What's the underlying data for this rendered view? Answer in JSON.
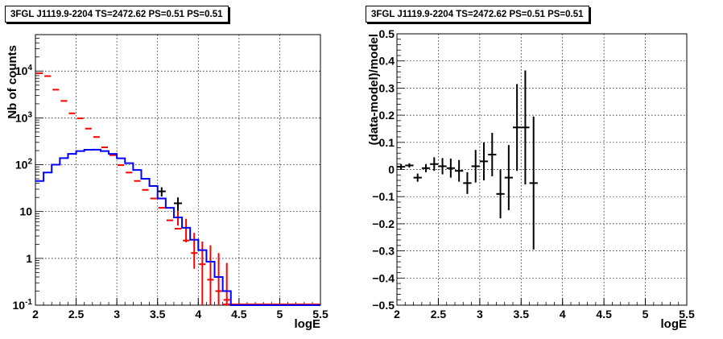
{
  "chart_data": [
    {
      "type": "step-histogram-with-errors",
      "title": "3FGL J1119.9-2204 TS=2472.62 PS=0.51 PS=0.51",
      "xlabel": "logE",
      "ylabel": "Nb of counts",
      "xlim": [
        2,
        5.5
      ],
      "ylim": [
        0.1,
        60000
      ],
      "yscale": "log",
      "grid": true,
      "xticks": [
        "2",
        "2.5",
        "3",
        "3.5",
        "4",
        "4.5",
        "5",
        "5.5"
      ],
      "yticks": [
        {
          "value": 0.1,
          "base": "10",
          "exp": "-1"
        },
        {
          "value": 1,
          "base": "1",
          "exp": ""
        },
        {
          "value": 10,
          "base": "10",
          "exp": ""
        },
        {
          "value": 100,
          "base": "10",
          "exp": "2"
        },
        {
          "value": 1000,
          "base": "10",
          "exp": "3"
        },
        {
          "value": 10000,
          "base": "10",
          "exp": "4"
        }
      ],
      "bin_edges": [
        2.0,
        2.1,
        2.2,
        2.3,
        2.4,
        2.5,
        2.6,
        2.7,
        2.8,
        2.9,
        3.0,
        3.1,
        3.2,
        3.3,
        3.4,
        3.5,
        3.6,
        3.7,
        3.8,
        3.9,
        4.0,
        4.1,
        4.2,
        4.3,
        4.4,
        4.5,
        4.6,
        4.7,
        4.8,
        4.9,
        5.0,
        5.1,
        5.2,
        5.3,
        5.4,
        5.5
      ],
      "series": [
        {
          "role": "total model",
          "color": "#ff0000",
          "values": [
            9000,
            7800,
            4000,
            2300,
            1250,
            980,
            590,
            390,
            235,
            160,
            98,
            68,
            45,
            29,
            19,
            12,
            6.5,
            4.3,
            2.4,
            1.3,
            0.75,
            0.35,
            0.2,
            0.13,
            0.1,
            0.1,
            0.1,
            0.1,
            0.1,
            0.1,
            0.1,
            0.1,
            0.1,
            0.1,
            0.1
          ]
        },
        {
          "role": "source model",
          "color": "#0000ff",
          "values": [
            45,
            68,
            100,
            138,
            170,
            195,
            208,
            210,
            195,
            170,
            137,
            108,
            77,
            50,
            35,
            19,
            12,
            7.5,
            4.5,
            2.5,
            1.5,
            0.85,
            0.4,
            0.2,
            0.1,
            0.1,
            0.1,
            0.1,
            0.1,
            0.1,
            0.1,
            0.1,
            0.1,
            0.1,
            0.1
          ]
        },
        {
          "role": "data",
          "color": "#000000",
          "points": [
            {
              "x": 3.55,
              "y": 27,
              "lo": 21,
              "hi": 33
            },
            {
              "x": 3.75,
              "y": 15,
              "lo": 10.5,
              "hi": 20
            }
          ]
        }
      ],
      "red_error_bars": [
        {
          "x": 3.75,
          "lo": 5,
          "hi": 14
        },
        {
          "x": 3.85,
          "lo": 2.2,
          "hi": 7
        },
        {
          "x": 3.95,
          "lo": 0.6,
          "hi": 3.5
        },
        {
          "x": 4.05,
          "lo": 0.1,
          "hi": 2.3
        },
        {
          "x": 4.15,
          "lo": 0.1,
          "hi": 1.9
        },
        {
          "x": 4.25,
          "lo": 0.1,
          "hi": 1.3
        },
        {
          "x": 4.35,
          "lo": 0.1,
          "hi": 0.8
        }
      ]
    },
    {
      "type": "scatter-with-errors",
      "title": "3FGL J1119.9-2204 TS=2472.62 PS=0.51 PS=0.51",
      "xlabel": "logE",
      "ylabel": "(data-model)/model",
      "xlim": [
        2,
        5.5
      ],
      "ylim": [
        -0.5,
        0.5
      ],
      "grid": true,
      "xticks": [
        "2",
        "2.5",
        "3",
        "3.5",
        "4",
        "4.5",
        "5",
        "5.5"
      ],
      "yticks": [
        {
          "value": -0.5,
          "label": "−0.5"
        },
        {
          "value": -0.4,
          "label": "−0.4"
        },
        {
          "value": -0.3,
          "label": "−0.3"
        },
        {
          "value": -0.2,
          "label": "−0.2"
        },
        {
          "value": -0.1,
          "label": "−0.1"
        },
        {
          "value": 0,
          "label": "0"
        },
        {
          "value": 0.1,
          "label": "0.1"
        },
        {
          "value": 0.2,
          "label": "0.2"
        },
        {
          "value": 0.3,
          "label": "0.3"
        },
        {
          "value": 0.4,
          "label": "0.4"
        },
        {
          "value": 0.5,
          "label": "0.5"
        }
      ],
      "points": [
        {
          "x": 2.05,
          "y": 0.01,
          "err": 0.01
        },
        {
          "x": 2.15,
          "y": 0.015,
          "err": 0.008
        },
        {
          "x": 2.25,
          "y": -0.03,
          "err": 0.015
        },
        {
          "x": 2.35,
          "y": 0.005,
          "err": 0.015
        },
        {
          "x": 2.45,
          "y": 0.02,
          "err": 0.025
        },
        {
          "x": 2.55,
          "y": 0.012,
          "err": 0.03
        },
        {
          "x": 2.65,
          "y": 0.005,
          "err": 0.035
        },
        {
          "x": 2.75,
          "y": -0.005,
          "err": 0.04
        },
        {
          "x": 2.85,
          "y": -0.05,
          "err": 0.04
        },
        {
          "x": 2.95,
          "y": 0.012,
          "err": 0.06
        },
        {
          "x": 3.05,
          "y": 0.03,
          "err": 0.07
        },
        {
          "x": 3.15,
          "y": 0.055,
          "err": 0.08
        },
        {
          "x": 3.25,
          "y": -0.09,
          "err": 0.09
        },
        {
          "x": 3.35,
          "y": -0.03,
          "err": 0.12
        },
        {
          "x": 3.45,
          "y": 0.155,
          "err": 0.16
        },
        {
          "x": 3.55,
          "y": 0.155,
          "err": 0.21
        },
        {
          "x": 3.65,
          "y": -0.05,
          "err": 0.245
        }
      ]
    }
  ]
}
